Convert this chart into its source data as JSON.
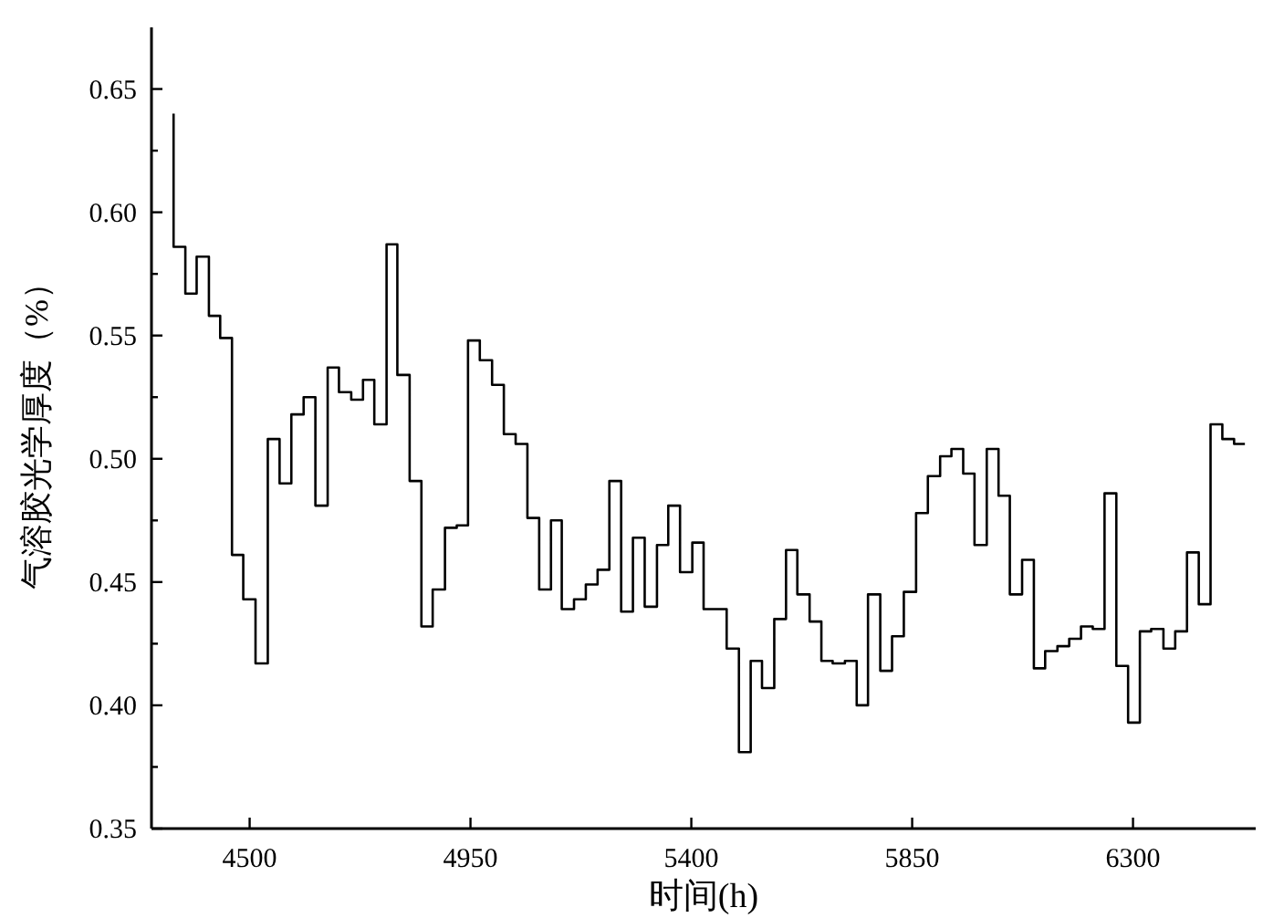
{
  "chart_data": {
    "type": "step",
    "xlabel": "时间(h)",
    "ylabel": "气溶胶光学厚度（%）",
    "color": "#000000",
    "x": [
      4345,
      4369,
      4392,
      4417,
      4440,
      4464,
      4487,
      4512,
      4537,
      4561,
      4585,
      4610,
      4634,
      4659,
      4682,
      4707,
      4731,
      4754,
      4779,
      4801,
      4826,
      4850,
      4873,
      4898,
      4922,
      4945,
      4969,
      4994,
      5018,
      5042,
      5066,
      5090,
      5114,
      5136,
      5161,
      5185,
      5209,
      5233,
      5257,
      5281,
      5305,
      5330,
      5353,
      5377,
      5402,
      5425,
      5449,
      5472,
      5497,
      5521,
      5544,
      5569,
      5593,
      5616,
      5641,
      5665,
      5688,
      5713,
      5737,
      5760,
      5785,
      5809,
      5833,
      5858,
      5882,
      5907,
      5930,
      5954,
      5977,
      6002,
      6026,
      6049,
      6074,
      6098,
      6121,
      6146,
      6170,
      6194,
      6218,
      6242,
      6266,
      6290,
      6314,
      6337,
      6362,
      6386,
      6410,
      6434,
      6458,
      6482,
      6506,
      6528
    ],
    "values": [
      0.64,
      0.586,
      0.567,
      0.582,
      0.558,
      0.549,
      0.461,
      0.443,
      0.417,
      0.508,
      0.49,
      0.518,
      0.525,
      0.481,
      0.537,
      0.527,
      0.524,
      0.532,
      0.514,
      0.587,
      0.534,
      0.491,
      0.432,
      0.447,
      0.472,
      0.473,
      0.548,
      0.54,
      0.53,
      0.51,
      0.506,
      0.476,
      0.447,
      0.475,
      0.439,
      0.443,
      0.449,
      0.455,
      0.491,
      0.438,
      0.468,
      0.44,
      0.465,
      0.481,
      0.454,
      0.466,
      0.439,
      0.439,
      0.423,
      0.381,
      0.418,
      0.407,
      0.435,
      0.463,
      0.445,
      0.434,
      0.418,
      0.417,
      0.418,
      0.4,
      0.445,
      0.414,
      0.428,
      0.446,
      0.478,
      0.493,
      0.501,
      0.504,
      0.494,
      0.465,
      0.504,
      0.485,
      0.445,
      0.459,
      0.415,
      0.422,
      0.424,
      0.427,
      0.432,
      0.431,
      0.486,
      0.416,
      0.393,
      0.43,
      0.431,
      0.423,
      0.43,
      0.462,
      0.441,
      0.514,
      0.508,
      0.506
    ],
    "xlim": [
      4300,
      6550
    ],
    "ylim": [
      0.35,
      0.675
    ],
    "xticks": [
      4500,
      4950,
      5400,
      5850,
      6300
    ],
    "yticks": [
      {
        "value": 0.35,
        "label": "0.35"
      },
      {
        "value": 0.375,
        "label": null
      },
      {
        "value": 0.4,
        "label": "0.40"
      },
      {
        "value": 0.425,
        "label": null
      },
      {
        "value": 0.45,
        "label": "0.45"
      },
      {
        "value": 0.475,
        "label": null
      },
      {
        "value": 0.5,
        "label": "0.50"
      },
      {
        "value": 0.525,
        "label": null
      },
      {
        "value": 0.55,
        "label": "0.55"
      },
      {
        "value": 0.575,
        "label": null
      },
      {
        "value": 0.6,
        "label": "0.60"
      },
      {
        "value": 0.625,
        "label": null
      },
      {
        "value": 0.65,
        "label": "0.65"
      }
    ],
    "grid": false
  }
}
